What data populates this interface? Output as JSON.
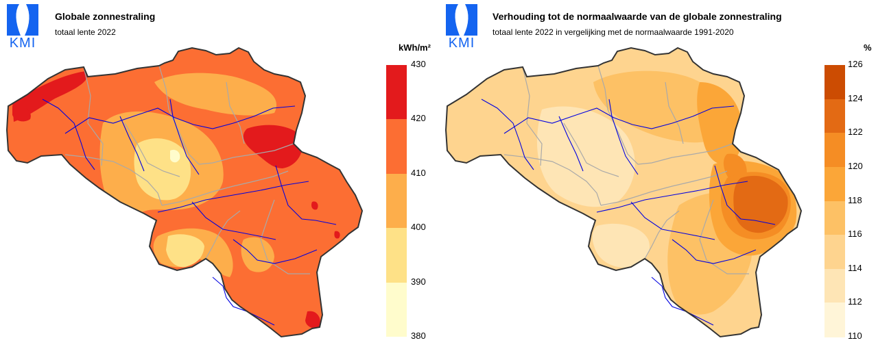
{
  "brand": {
    "logo_text": "KMI",
    "logo_color": "#1464f0"
  },
  "panels": [
    {
      "title": "Globale zonnestraling",
      "subtitle": "totaal lente 2022",
      "unit": "kWh/m²",
      "legend": {
        "ticks": [
          "430",
          "420",
          "410",
          "400",
          "390",
          "380"
        ],
        "colors": [
          "#e31a1c",
          "#fc6e33",
          "#fdae4b",
          "#fee187",
          "#fffccc"
        ]
      },
      "map": {
        "base_color": "#fc6e33",
        "zones": [
          "#e31a1c",
          "#fdae4b",
          "#fee187",
          "#fffccc"
        ],
        "border_color": "#333333",
        "province_color": "#a9a9a9",
        "river_color": "#0000e0"
      }
    },
    {
      "title": "Verhouding tot de normaalwaarde van de globale zonnestraling",
      "subtitle": "totaal lente 2022 in vergelijking met de normaalwaarde 1991-2020",
      "unit": "%",
      "legend": {
        "ticks": [
          "126",
          "124",
          "122",
          "120",
          "118",
          "116",
          "114",
          "112",
          "110"
        ],
        "colors": [
          "#cc4c02",
          "#e36a14",
          "#f58d24",
          "#fba638",
          "#fdc165",
          "#fed48f",
          "#fee5b5",
          "#fff5d8"
        ]
      },
      "map": {
        "base_color": "#fed48f",
        "zones": [
          "#fee5b5",
          "#fdc165",
          "#fba638",
          "#f58d24",
          "#e36a14"
        ],
        "border_color": "#333333",
        "province_color": "#a9a9a9",
        "river_color": "#0000e0"
      }
    }
  ]
}
